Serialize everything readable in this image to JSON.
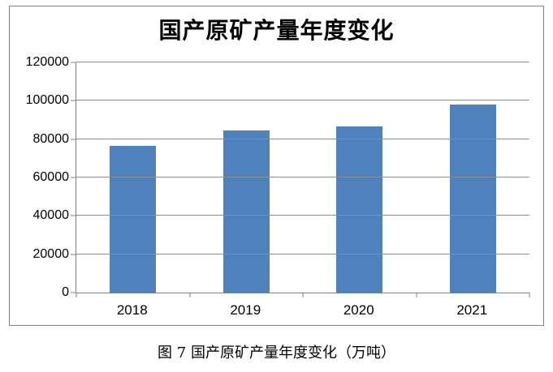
{
  "page": {
    "background": "#ffffff"
  },
  "figure": {
    "caption": "图 7  国产原矿产量年度变化（万吨）"
  },
  "chart_data": {
    "type": "bar",
    "title": "国产原矿产量年度变化",
    "categories": [
      "2018",
      "2019",
      "2020",
      "2021"
    ],
    "values": [
      76500,
      84600,
      86800,
      98000
    ],
    "xlabel": "",
    "ylabel": "",
    "unit": "万吨",
    "ylim": [
      0,
      120000
    ],
    "yticks": [
      0,
      20000,
      40000,
      60000,
      80000,
      100000,
      120000
    ],
    "grid": true,
    "legend_position": "none",
    "colors": {
      "bar": "#4F81BD",
      "gridline": "#8E8E8E",
      "axis": "#808080",
      "frame_border": "#808080",
      "text": "#000000"
    }
  }
}
